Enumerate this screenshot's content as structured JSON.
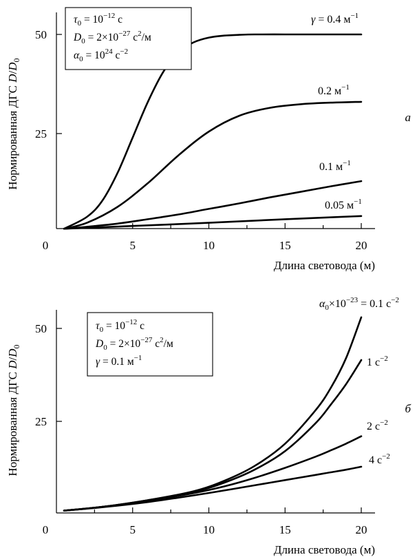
{
  "chart_data": [
    {
      "type": "line",
      "panel": "a",
      "xlabel": "Длина световода (м)",
      "ylabel": "Нормированная ДГС D/D₀",
      "xlim": [
        0,
        21
      ],
      "ylim": [
        0,
        55
      ],
      "x_ticks": [
        "0",
        "5",
        "10",
        "15",
        "20"
      ],
      "y_ticks": [
        "25",
        "50"
      ],
      "params": [
        {
          "base": "τ",
          "sub": "0",
          "text": " = 10",
          "sup": "−12",
          "tail": " с"
        },
        {
          "base": "D",
          "sub": "0",
          "text": " = 2×10",
          "sup": "−27",
          "tail": " с²/м"
        },
        {
          "base": "α",
          "sub": "0",
          "text": " = 10",
          "sup": "24",
          "tail": " с",
          "sup2": "−2"
        }
      ],
      "series": [
        {
          "name": "γ = 0.4 м⁻¹",
          "label_parts": {
            "pre": "γ = 0.4 м",
            "sup": "−1"
          },
          "x": [
            0.5,
            2,
            3,
            4,
            5,
            6,
            7,
            8,
            9,
            10,
            11,
            12,
            13,
            15,
            17,
            20
          ],
          "y": [
            1,
            4,
            8,
            15,
            24,
            33,
            40.5,
            45.5,
            48,
            49.2,
            49.7,
            49.9,
            50,
            50,
            50,
            50
          ]
        },
        {
          "name": "0.2 м⁻¹",
          "label_parts": {
            "pre": "0.2 м",
            "sup": "−1"
          },
          "x": [
            0.5,
            2,
            4,
            6,
            8,
            10,
            12,
            14,
            16,
            18,
            20
          ],
          "y": [
            1,
            2.5,
            6.5,
            12.5,
            19.5,
            25.5,
            29.5,
            31.5,
            32.4,
            32.8,
            33
          ]
        },
        {
          "name": "0.1 м⁻¹",
          "label_parts": {
            "pre": "0.1 м",
            "sup": "−1"
          },
          "x": [
            0.5,
            2,
            4,
            6,
            8,
            10,
            12,
            14,
            16,
            18,
            20
          ],
          "y": [
            1,
            1.5,
            2.3,
            3.4,
            4.6,
            6,
            7.4,
            8.9,
            10.3,
            11.7,
            13
          ]
        },
        {
          "name": "0.05 м⁻¹",
          "label_parts": {
            "pre": "0.05 м",
            "sup": "−1"
          },
          "x": [
            0.5,
            5,
            10,
            15,
            20
          ],
          "y": [
            1,
            1.7,
            2.5,
            3.4,
            4.2
          ]
        }
      ]
    },
    {
      "type": "line",
      "panel": "б",
      "xlabel": "Длина световода (м)",
      "ylabel": "Нормированная ДГС D/D₀",
      "xlim": [
        0,
        21
      ],
      "ylim": [
        0,
        56
      ],
      "x_ticks": [
        "0",
        "5",
        "10",
        "15",
        "20"
      ],
      "y_ticks": [
        "25",
        "50"
      ],
      "params": [
        {
          "base": "τ",
          "sub": "0",
          "text": " = 10",
          "sup": "−12",
          "tail": " с"
        },
        {
          "base": "D",
          "sub": "0",
          "text": " = 2×10",
          "sup": "−27",
          "tail": " с²/м"
        },
        {
          "base": "γ",
          "sub": "",
          "text": " = 0.1 м",
          "sup": "−1",
          "tail": ""
        }
      ],
      "series": [
        {
          "name": "α₀×10⁻²³ = 0.1 с⁻²",
          "label_parts": {
            "pre": "α₀×10",
            "sup": "−23",
            "mid": " = 0.1 с",
            "sup2": "−2"
          },
          "x": [
            0.5,
            3,
            6,
            9,
            11,
            13,
            15,
            17,
            18,
            19,
            20
          ],
          "y": [
            1,
            2,
            3.8,
            6.2,
            9,
            13,
            19,
            28,
            34,
            42,
            53
          ]
        },
        {
          "name": "1 с⁻²",
          "label_parts": {
            "pre": "1 с",
            "sup": "−2"
          },
          "x": [
            0.5,
            3,
            6,
            9,
            11,
            13,
            15,
            17,
            18,
            19,
            20
          ],
          "y": [
            1,
            2,
            3.8,
            6,
            8.5,
            12,
            17,
            24.5,
            29.5,
            35,
            41.5
          ]
        },
        {
          "name": "2 с⁻²",
          "label_parts": {
            "pre": "2 с",
            "sup": "−2"
          },
          "x": [
            0.5,
            3,
            6,
            9,
            11,
            13,
            15,
            17,
            18,
            19,
            20
          ],
          "y": [
            1,
            2,
            3.6,
            5.7,
            7.5,
            9.8,
            12.5,
            15.5,
            17.2,
            19,
            21
          ]
        },
        {
          "name": "4 с⁻²",
          "label_parts": {
            "pre": "4 с",
            "sup": "−2"
          },
          "x": [
            0.5,
            3,
            6,
            9,
            11,
            13,
            15,
            17,
            18,
            19,
            20
          ],
          "y": [
            1,
            1.9,
            3.3,
            5.1,
            6.4,
            7.8,
            9.2,
            10.6,
            11.3,
            12,
            12.8
          ]
        }
      ]
    }
  ]
}
